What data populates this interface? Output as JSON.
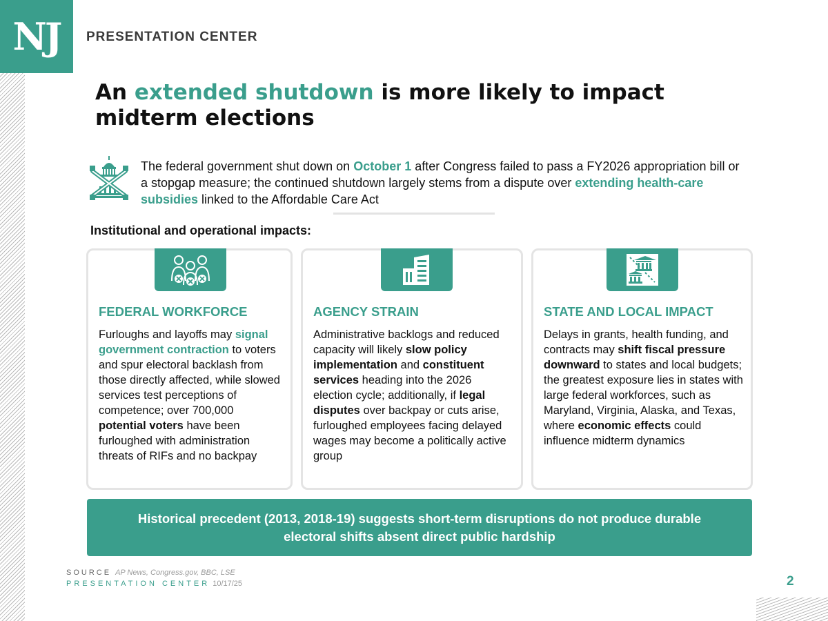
{
  "brand": {
    "logo_text": "NJ",
    "header_label": "PRESENTATION CENTER",
    "accent_color": "#3a9e8c"
  },
  "title": {
    "part1": "An ",
    "highlight": "extended shutdown",
    "part2": " is more likely to impact midterm elections"
  },
  "intro": {
    "icon": "capitol-crossed-icon",
    "t1": "The federal government shut down on ",
    "h1": "October 1",
    "t2": " after Congress failed to pass a FY2026 appropriation bill or a stopgap measure; the continued shutdown largely stems from a dispute over ",
    "h2": "extending health-care subsidies",
    "t3": " linked to the Affordable Care Act"
  },
  "section_label": "Institutional and operational impacts:",
  "cards": [
    {
      "icon": "furloughed-workers-icon",
      "heading": "FEDERAL WORKFORCE",
      "s1": "Furloughs and layoffs may ",
      "h1": "signal government contraction",
      "s2": " to voters and spur electoral backlash from those directly affected, while slowed services test perceptions of competence; over 700,000 ",
      "b1": "potential voters",
      "s3": " have been furloughed with administration threats of RIFs and no backpay"
    },
    {
      "icon": "office-building-icon",
      "heading": "AGENCY STRAIN",
      "s1": "Administrative backlogs and reduced capacity will likely ",
      "b1": "slow policy implementation",
      "s2": " and ",
      "b2": "constituent services",
      "s3": " heading into the 2026 election cycle; additionally, if ",
      "b3": "legal disputes",
      "s4": " over backpay or cuts arise, furloughed employees facing delayed wages may become a politically active group"
    },
    {
      "icon": "state-local-transfer-icon",
      "heading": "STATE AND LOCAL IMPACT",
      "s1": "Delays in grants, health funding, and contracts may ",
      "b1": "shift fiscal pressure downward",
      "s2": " to states and local budgets; the greatest exposure lies in states with large federal workforces, such as Maryland, Virginia, Alaska, and Texas, where ",
      "b2": "economic effects",
      "s3": " could influence midterm dynamics"
    }
  ],
  "banner": "Historical precedent (2013, 2018-19) suggests short-term disruptions do not produce durable electoral shifts absent direct public hardship",
  "footer": {
    "source_label": "SOURCE",
    "source_text": "AP News, Congress.gov, BBC, LSE",
    "center_label": "PRESENTATION CENTER",
    "date": "10/17/25",
    "page_number": "2"
  }
}
